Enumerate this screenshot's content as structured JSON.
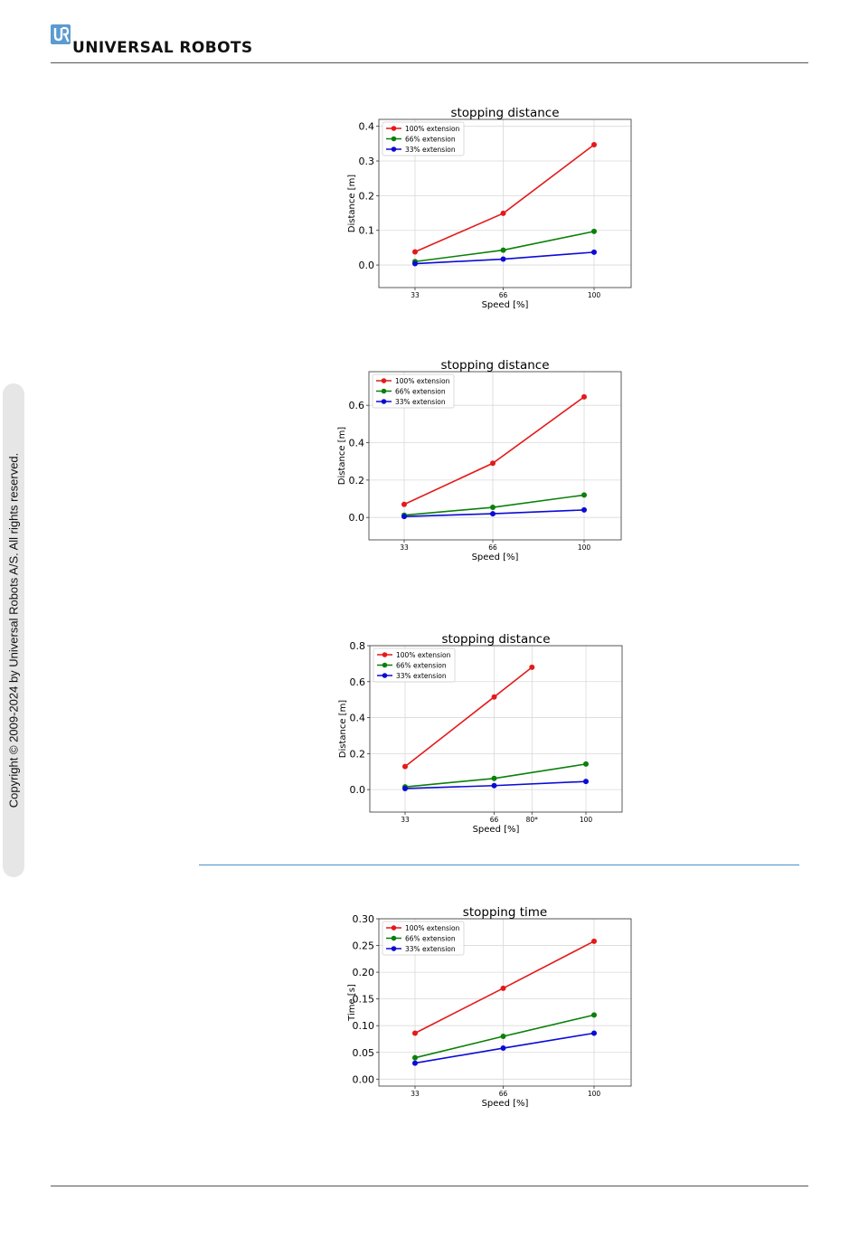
{
  "header": {
    "brand": "UNIVERSAL ROBOTS",
    "logo_icon": "ur-logo-icon",
    "logo_color": "#5b9bd1"
  },
  "sidebar": {
    "copyright": "Copyright © 2009-2024 by Universal Robots A/S. All rights reserved."
  },
  "colors": {
    "red": "#e41a1a",
    "green": "#0a800a",
    "blue": "#0b0bd6"
  },
  "chart_data": [
    {
      "type": "line",
      "title": "stopping distance",
      "xlabel": "Speed [%]",
      "ylabel": "Distance [m]",
      "x": [
        33,
        66,
        100
      ],
      "xticks": [
        "33",
        "66",
        "100"
      ],
      "ylim": [
        -0.065,
        0.42
      ],
      "yticks": [
        0.0,
        0.1,
        0.2,
        0.3,
        0.4
      ],
      "ytick_labels": [
        "0.0",
        "0.1",
        "0.2",
        "0.3",
        "0.4"
      ],
      "grid": true,
      "legend_position": "top-left",
      "series": [
        {
          "name": "100% extension",
          "color": "#e41a1a",
          "x": [
            33,
            66,
            100
          ],
          "values": [
            0.038,
            0.149,
            0.347
          ]
        },
        {
          "name": "66% extension",
          "color": "#0a800a",
          "x": [
            33,
            66,
            100
          ],
          "values": [
            0.01,
            0.043,
            0.097
          ]
        },
        {
          "name": "33% extension",
          "color": "#0b0bd6",
          "x": [
            33,
            66,
            100
          ],
          "values": [
            0.004,
            0.017,
            0.037
          ]
        }
      ]
    },
    {
      "type": "line",
      "title": "stopping distance",
      "xlabel": "Speed [%]",
      "ylabel": "Distance [m]",
      "x": [
        33,
        66,
        100
      ],
      "xticks": [
        "33",
        "66",
        "100"
      ],
      "ylim": [
        -0.12,
        0.78
      ],
      "yticks": [
        0.0,
        0.2,
        0.4,
        0.6
      ],
      "ytick_labels": [
        "0.0",
        "0.2",
        "0.4",
        "0.6"
      ],
      "grid": true,
      "legend_position": "top-left",
      "series": [
        {
          "name": "100% extension",
          "color": "#e41a1a",
          "x": [
            33,
            66,
            100
          ],
          "values": [
            0.07,
            0.29,
            0.645
          ]
        },
        {
          "name": "66% extension",
          "color": "#0a800a",
          "x": [
            33,
            66,
            100
          ],
          "values": [
            0.012,
            0.054,
            0.12
          ]
        },
        {
          "name": "33% extension",
          "color": "#0b0bd6",
          "x": [
            33,
            66,
            100
          ],
          "values": [
            0.005,
            0.02,
            0.04
          ]
        }
      ]
    },
    {
      "type": "line",
      "title": "stopping distance",
      "xlabel": "Speed [%]",
      "ylabel": "Distance [m]",
      "x": [
        33,
        66,
        80,
        100
      ],
      "xticks": [
        "33",
        "66",
        "80*",
        "100"
      ],
      "ylim": [
        -0.125,
        0.8
      ],
      "yticks": [
        0.0,
        0.2,
        0.4,
        0.6,
        0.8
      ],
      "ytick_labels": [
        "0.0",
        "0.2",
        "0.4",
        "0.6",
        "0.8"
      ],
      "grid": true,
      "legend_position": "top-left",
      "series": [
        {
          "name": "100% extension",
          "color": "#e41a1a",
          "x": [
            33,
            66,
            80
          ],
          "values": [
            0.128,
            0.515,
            0.68
          ]
        },
        {
          "name": "66% extension",
          "color": "#0a800a",
          "x": [
            33,
            66,
            100
          ],
          "values": [
            0.015,
            0.062,
            0.142
          ]
        },
        {
          "name": "33% extension",
          "color": "#0b0bd6",
          "x": [
            33,
            66,
            100
          ],
          "values": [
            0.006,
            0.022,
            0.045
          ]
        }
      ]
    },
    {
      "type": "line",
      "title": "stopping time",
      "xlabel": "Speed [%]",
      "ylabel": "Time [s]",
      "x": [
        33,
        66,
        100
      ],
      "xticks": [
        "33",
        "66",
        "100"
      ],
      "ylim": [
        -0.013,
        0.3
      ],
      "yticks": [
        0.0,
        0.05,
        0.1,
        0.15,
        0.2,
        0.25,
        0.3
      ],
      "ytick_labels": [
        "0.00",
        "0.05",
        "0.10",
        "0.15",
        "0.20",
        "0.25",
        "0.30"
      ],
      "grid": true,
      "legend_position": "top-left",
      "series": [
        {
          "name": "100% extension",
          "color": "#e41a1a",
          "x": [
            33,
            66,
            100
          ],
          "values": [
            0.086,
            0.17,
            0.258
          ]
        },
        {
          "name": "66% extension",
          "color": "#0a800a",
          "x": [
            33,
            66,
            100
          ],
          "values": [
            0.04,
            0.08,
            0.12
          ]
        },
        {
          "name": "33% extension",
          "color": "#0b0bd6",
          "x": [
            33,
            66,
            100
          ],
          "values": [
            0.03,
            0.058,
            0.086
          ]
        }
      ]
    }
  ]
}
